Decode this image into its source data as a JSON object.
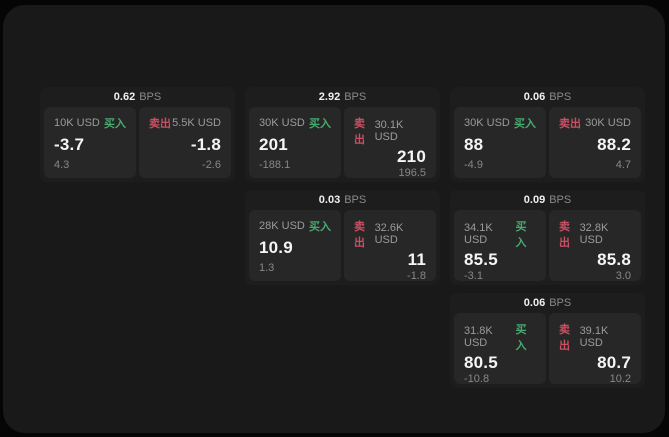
{
  "labels": {
    "bps_unit": "BPS",
    "buy": "买入",
    "sell": "卖出"
  },
  "colors": {
    "buy_accent": "#47aa6f",
    "sell_accent": "#c94f63",
    "value_text": "#f5f5f5",
    "muted_text": "#9b9b9b",
    "page_surface": "#191919",
    "card_surface": "#1d1d1d",
    "pane_surface": "#272727"
  },
  "cards": [
    {
      "bps": "0.62",
      "buy": {
        "amount": "10K USD",
        "value": "-3.7",
        "sub": "4.3"
      },
      "sell": {
        "amount": "5.5K USD",
        "value": "-1.8",
        "sub": "-2.6"
      }
    },
    {
      "bps": "2.92",
      "buy": {
        "amount": "30K USD",
        "value": "201",
        "sub": "-188.1"
      },
      "sell": {
        "amount": "30.1K USD",
        "value": "210",
        "sub": "196.5"
      }
    },
    {
      "bps": "0.06",
      "buy": {
        "amount": "30K USD",
        "value": "88",
        "sub": "-4.9"
      },
      "sell": {
        "amount": "30K USD",
        "value": "88.2",
        "sub": "4.7"
      }
    },
    {
      "bps": "0.03",
      "buy": {
        "amount": "28K USD",
        "value": "10.9",
        "sub": "1.3"
      },
      "sell": {
        "amount": "32.6K USD",
        "value": "11",
        "sub": "-1.8"
      }
    },
    {
      "bps": "0.09",
      "buy": {
        "amount": "34.1K USD",
        "value": "85.5",
        "sub": "-3.1"
      },
      "sell": {
        "amount": "32.8K USD",
        "value": "85.8",
        "sub": "3.0"
      }
    },
    {
      "bps": "0.06",
      "buy": {
        "amount": "31.8K USD",
        "value": "80.5",
        "sub": "-10.8"
      },
      "sell": {
        "amount": "39.1K USD",
        "value": "80.7",
        "sub": "10.2"
      }
    }
  ]
}
